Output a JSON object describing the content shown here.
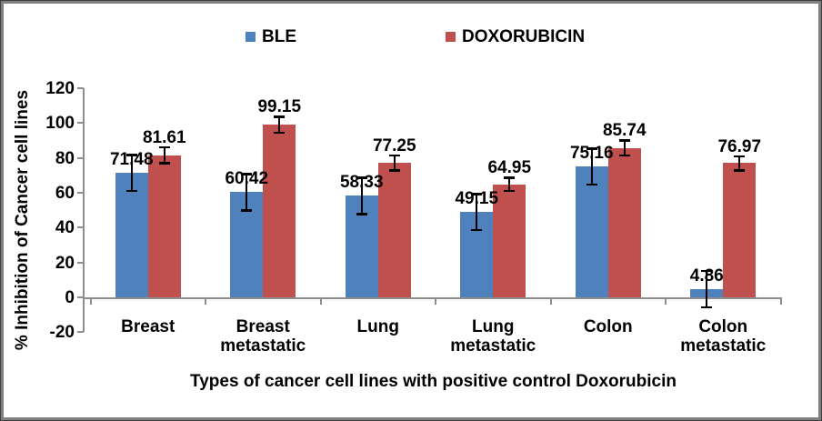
{
  "chart_data": {
    "type": "bar",
    "title": "",
    "categories": [
      "Breast",
      "Breast\nmetastatic",
      "Lung",
      "Lung\nmetastatic",
      "Colon",
      "Colon\nmetastatic"
    ],
    "series": [
      {
        "name": "BLE",
        "color": "#4F81BD",
        "values": [
          71.48,
          60.42,
          58.33,
          49.15,
          75.16,
          4.86
        ],
        "errors": [
          10.4,
          10.5,
          10.4,
          10.3,
          10.4,
          10.5
        ]
      },
      {
        "name": "DOXORUBICIN",
        "color": "#C0504D",
        "values": [
          81.61,
          99.15,
          77.25,
          64.95,
          85.74,
          76.97
        ],
        "errors": [
          4.5,
          4.5,
          4.3,
          3.8,
          4.3,
          4.0
        ]
      }
    ],
    "xlabel": "Types of cancer cell lines with positive control Doxorubicin",
    "ylabel": "% Inhibition of Cancer cell lines",
    "ylim": [
      -20,
      120
    ],
    "yticks": [
      120,
      100,
      80,
      60,
      40,
      20,
      0,
      -20
    ],
    "grid": false,
    "legend_position": "top",
    "data_labels": true,
    "error_bars": true,
    "axis_color": "#8E8E8E",
    "error_bar_color": "#000000",
    "label_format_decimals": 2
  }
}
